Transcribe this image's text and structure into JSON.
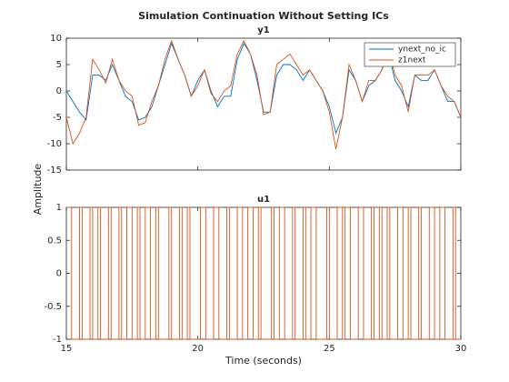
{
  "figure": {
    "title": "Simulation Continuation Without Setting ICs",
    "ylabel": "Amplitude",
    "xlabel": "Time (seconds)"
  },
  "chart_data": [
    {
      "type": "line",
      "title": "y1",
      "x": [
        15.0,
        15.25,
        15.5,
        15.75,
        16.0,
        16.25,
        16.5,
        16.75,
        17.0,
        17.25,
        17.5,
        17.75,
        18.0,
        18.25,
        18.5,
        18.75,
        19.0,
        19.25,
        19.5,
        19.75,
        20.0,
        20.25,
        20.5,
        20.75,
        21.0,
        21.25,
        21.5,
        21.75,
        22.0,
        22.25,
        22.5,
        22.75,
        23.0,
        23.25,
        23.5,
        23.75,
        24.0,
        24.25,
        24.5,
        24.75,
        25.0,
        25.25,
        25.5,
        25.75,
        26.0,
        26.25,
        26.5,
        26.75,
        27.0,
        27.25,
        27.5,
        27.75,
        28.0,
        28.25,
        28.5,
        28.75,
        29.0,
        29.25,
        29.5,
        29.75,
        30.0
      ],
      "series": [
        {
          "name": "ynext_no_ic",
          "color": "#0072bd",
          "values": [
            0,
            -2,
            -4,
            -5.5,
            3,
            3,
            2,
            5,
            2,
            -1,
            -2,
            -5.5,
            -5,
            -3,
            1,
            5,
            9,
            6,
            3,
            -1,
            2,
            4,
            0,
            -3,
            -1,
            -1,
            6,
            9,
            7,
            2,
            -4,
            -4,
            3,
            5,
            5,
            4,
            2,
            4,
            2,
            0,
            -3,
            -8,
            -5,
            4,
            2,
            -2,
            1,
            2,
            4,
            7,
            2,
            0,
            -3,
            3,
            2,
            2,
            4,
            1,
            -2,
            -2,
            -5
          ]
        },
        {
          "name": "z1next",
          "color": "#d95319",
          "values": [
            -5,
            -10,
            -8,
            -5,
            6,
            4,
            1.5,
            6,
            2,
            0,
            -1,
            -6.5,
            -6,
            -2,
            1,
            6,
            9.5,
            6,
            3,
            -1,
            1,
            4,
            -0.5,
            -2,
            0,
            1,
            7,
            9.5,
            7,
            3,
            -4.5,
            -4,
            5,
            6,
            7,
            5,
            3,
            4,
            2,
            0,
            -4,
            -11,
            -5,
            5,
            2,
            -2,
            2,
            2,
            4,
            8,
            3,
            1,
            -4,
            3,
            3,
            3,
            4,
            1,
            -1,
            -2,
            -5
          ]
        }
      ],
      "xlim": [
        15,
        30
      ],
      "xticks": [
        15,
        20,
        25,
        30
      ],
      "ylim": [
        -15,
        10
      ],
      "yticks": [
        -15,
        -10,
        -5,
        0,
        5,
        10
      ],
      "legend": "northeast"
    },
    {
      "type": "stairs",
      "title": "u1",
      "x": [
        15.0,
        15.2,
        15.5,
        15.6,
        15.9,
        16.0,
        16.2,
        16.3,
        16.6,
        16.7,
        17.0,
        17.1,
        17.3,
        17.5,
        17.7,
        17.8,
        18.0,
        18.2,
        18.4,
        18.5,
        18.9,
        19.0,
        19.3,
        19.4,
        19.6,
        19.7,
        20.1,
        20.3,
        20.6,
        20.8,
        21.1,
        21.2,
        21.5,
        21.7,
        21.9,
        22.1,
        22.3,
        22.4,
        22.8,
        22.9,
        23.1,
        23.3,
        23.6,
        23.7,
        24.0,
        24.1,
        24.3,
        24.5,
        24.9,
        25.0,
        25.3,
        25.5,
        25.6,
        25.8,
        26.1,
        26.3,
        26.6,
        26.7,
        26.9,
        27.0,
        27.2,
        27.3,
        27.6,
        27.8,
        28.0,
        28.1,
        28.4,
        28.5,
        28.8,
        29.0,
        29.2,
        29.4,
        29.7,
        29.8,
        30.0
      ],
      "series": [
        {
          "name": "u1",
          "color": "#d95319",
          "values": [
            1,
            -1,
            1,
            -1,
            1,
            -1,
            1,
            -1,
            1,
            -1,
            1,
            -1,
            1,
            -1,
            1,
            -1,
            1,
            -1,
            1,
            -1,
            1,
            -1,
            1,
            -1,
            1,
            -1,
            1,
            -1,
            1,
            -1,
            1,
            -1,
            1,
            -1,
            1,
            -1,
            1,
            -1,
            1,
            -1,
            1,
            -1,
            1,
            -1,
            1,
            -1,
            1,
            -1,
            1,
            -1,
            1,
            -1,
            1,
            -1,
            1,
            -1,
            1,
            -1,
            1,
            -1,
            1,
            -1,
            1,
            -1,
            1,
            -1,
            1,
            -1,
            1,
            -1,
            1,
            -1,
            1,
            -1,
            -1
          ]
        }
      ],
      "xlim": [
        15,
        30
      ],
      "xticks": [
        15,
        20,
        25,
        30
      ],
      "ylim": [
        -1,
        1
      ],
      "yticks": [
        -1,
        -0.5,
        0,
        0.5,
        1
      ]
    }
  ]
}
